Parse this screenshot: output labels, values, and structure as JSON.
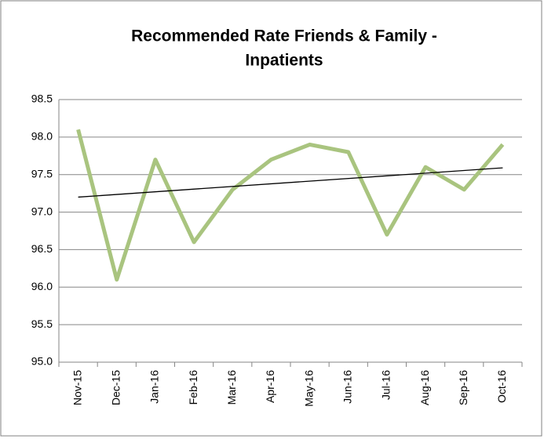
{
  "chart_data": {
    "type": "line",
    "title": [
      "Recommended Rate Friends & Family -",
      "Inpatients"
    ],
    "categories": [
      "Nov-15",
      "Dec-15",
      "Jan-16",
      "Feb-16",
      "Mar-16",
      "Apr-16",
      "May-16",
      "Jun-16",
      "Jul-16",
      "Aug-16",
      "Sep-16",
      "Oct-16"
    ],
    "series": [
      {
        "color": "#a9c47f",
        "values": [
          98.1,
          96.1,
          97.7,
          96.6,
          97.3,
          97.7,
          97.9,
          97.8,
          96.7,
          97.6,
          97.3,
          97.9
        ]
      }
    ],
    "trendline": {
      "color": "#000000",
      "values": [
        97.2,
        97.59
      ]
    },
    "ylim": [
      95,
      98.5
    ],
    "yticks": [
      {
        "value": 95,
        "label": "95.0"
      },
      95.5,
      {
        "value": 96,
        "label": "96.0"
      },
      96.5,
      {
        "value": 97,
        "label": "97.0"
      },
      97.5,
      {
        "value": 98,
        "label": "98.0"
      },
      98.5
    ],
    "grid": true
  }
}
